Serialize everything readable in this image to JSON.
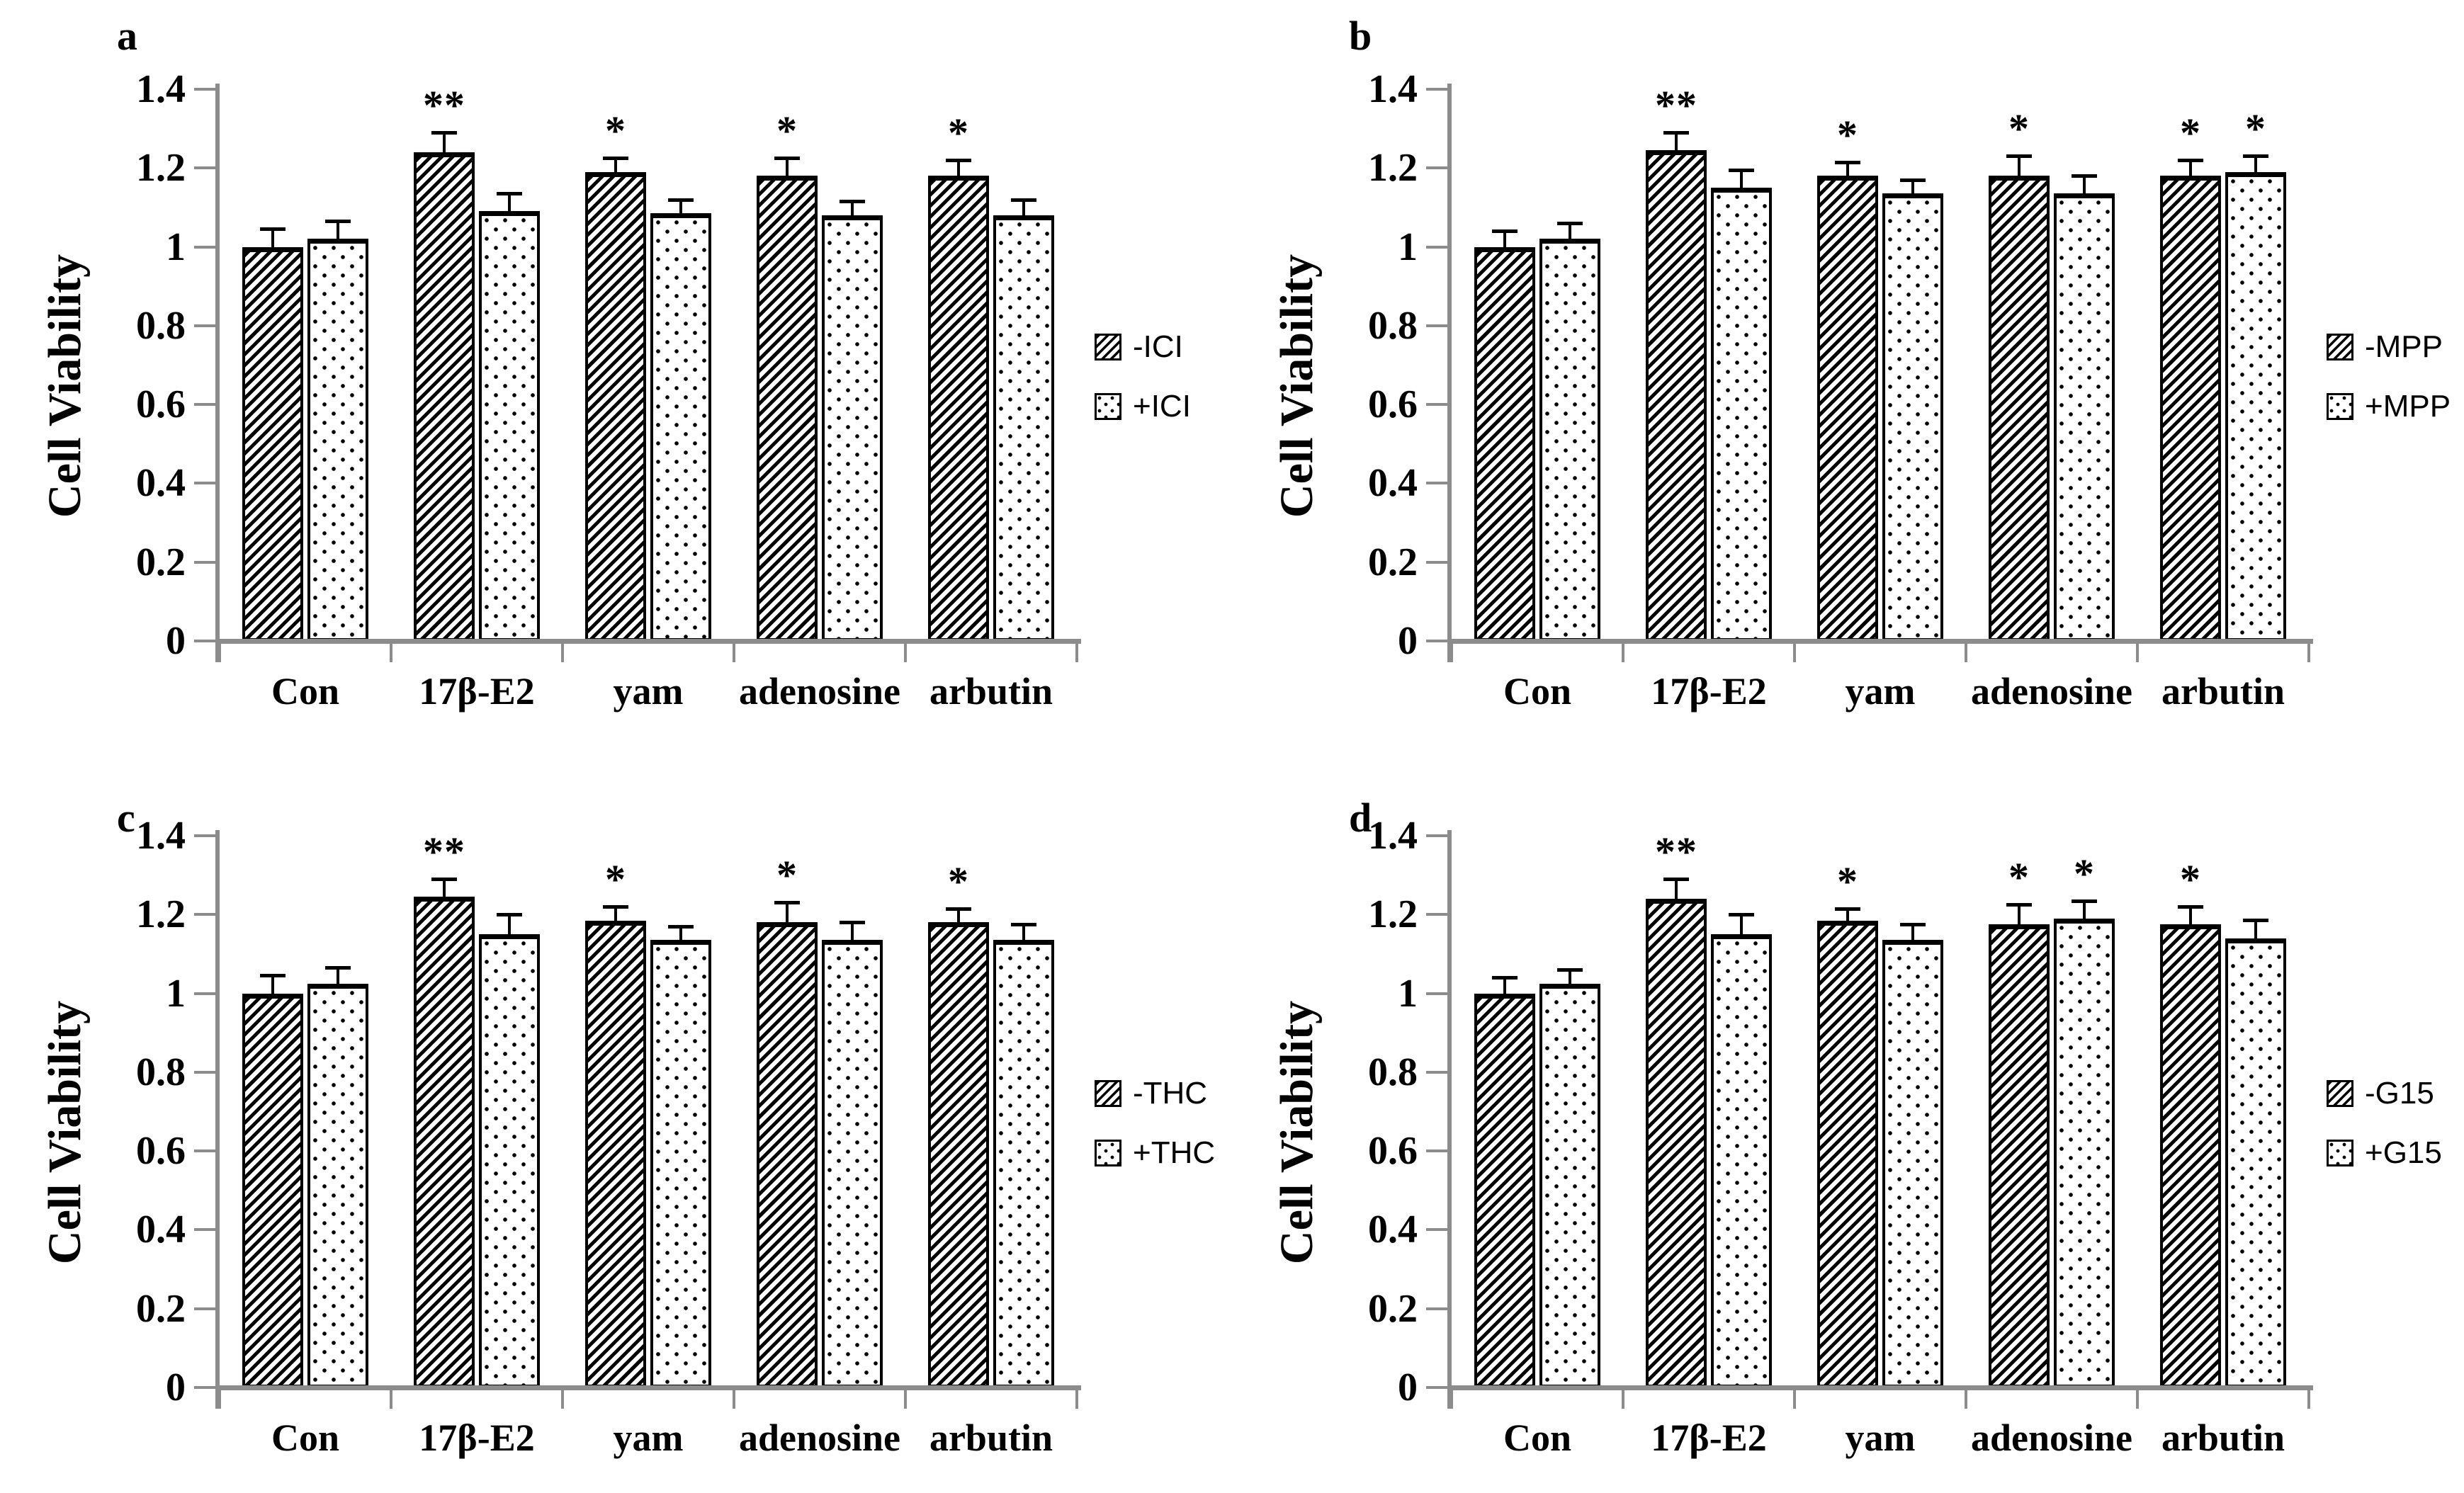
{
  "figure": {
    "background": "#ffffff",
    "axis_color": "#8c8c8c",
    "bar_outline_color": "#000000",
    "text_color": "#000000",
    "y_axis_title": "Cell Viability",
    "panel_letters": [
      "a",
      "b",
      "c",
      "d"
    ]
  },
  "chart_data": [
    {
      "type": "bar",
      "panel_label": "a",
      "title": "",
      "xlabel": "",
      "ylabel": "Cell Viability",
      "ylim": [
        0,
        1.4
      ],
      "yticks": [
        0,
        0.2,
        0.4,
        0.6,
        0.8,
        1,
        1.2,
        1.4
      ],
      "ytick_labels": [
        "0",
        "0.2",
        "0.4",
        "0.6",
        "0.8",
        "1",
        "1.2",
        "1.4"
      ],
      "categories": [
        "Con",
        "17β-E2",
        "yam",
        "adenosine",
        "arbutin"
      ],
      "grid": false,
      "legend_position": "right-middle",
      "series": [
        {
          "name": "-ICI",
          "pattern": "hatched",
          "values": [
            1.0,
            1.24,
            1.19,
            1.18,
            1.18
          ],
          "errors": [
            0.04,
            0.045,
            0.03,
            0.04,
            0.035
          ],
          "sig": [
            "",
            "**",
            "*",
            "*",
            "*"
          ]
        },
        {
          "name": "+ICI",
          "pattern": "dotted",
          "values": [
            1.02,
            1.09,
            1.085,
            1.08,
            1.08
          ],
          "errors": [
            0.04,
            0.04,
            0.03,
            0.03,
            0.035
          ],
          "sig": [
            "",
            "",
            "",
            "",
            ""
          ]
        }
      ]
    },
    {
      "type": "bar",
      "panel_label": "b",
      "title": "",
      "xlabel": "",
      "ylabel": "Cell Viability",
      "ylim": [
        0,
        1.4
      ],
      "yticks": [
        0,
        0.2,
        0.4,
        0.6,
        0.8,
        1,
        1.2,
        1.4
      ],
      "ytick_labels": [
        "0",
        "0.2",
        "0.4",
        "0.6",
        "0.8",
        "1",
        "1.2",
        "1.4"
      ],
      "categories": [
        "Con",
        "17β-E2",
        "yam",
        "adenosine",
        "arbutin"
      ],
      "grid": false,
      "legend_position": "right-middle",
      "series": [
        {
          "name": "-MPP",
          "pattern": "hatched",
          "values": [
            1.0,
            1.245,
            1.18,
            1.18,
            1.18
          ],
          "errors": [
            0.035,
            0.04,
            0.03,
            0.045,
            0.035
          ],
          "sig": [
            "",
            "**",
            "*",
            "*",
            "*"
          ]
        },
        {
          "name": "+MPP",
          "pattern": "dotted",
          "values": [
            1.02,
            1.15,
            1.135,
            1.135,
            1.19
          ],
          "errors": [
            0.035,
            0.04,
            0.03,
            0.04,
            0.035
          ],
          "sig": [
            "",
            "",
            "",
            "",
            "*"
          ]
        }
      ]
    },
    {
      "type": "bar",
      "panel_label": "c",
      "title": "",
      "xlabel": "",
      "ylabel": "Cell Viability",
      "ylim": [
        0,
        1.4
      ],
      "yticks": [
        0,
        0.2,
        0.4,
        0.6,
        0.8,
        1,
        1.2,
        1.4
      ],
      "ytick_labels": [
        "0",
        "0.2",
        "0.4",
        "0.6",
        "0.8",
        "1",
        "1.2",
        "1.4"
      ],
      "categories": [
        "Con",
        "17β-E2",
        "yam",
        "adenosine",
        "arbutin"
      ],
      "grid": false,
      "legend_position": "right-middle",
      "series": [
        {
          "name": "-THC",
          "pattern": "hatched",
          "values": [
            1.0,
            1.245,
            1.185,
            1.18,
            1.18
          ],
          "errors": [
            0.04,
            0.04,
            0.03,
            0.045,
            0.03
          ],
          "sig": [
            "",
            "**",
            "*",
            "*",
            "*"
          ]
        },
        {
          "name": "+THC",
          "pattern": "dotted",
          "values": [
            1.025,
            1.15,
            1.135,
            1.135,
            1.135
          ],
          "errors": [
            0.035,
            0.045,
            0.03,
            0.04,
            0.035
          ],
          "sig": [
            "",
            "",
            "",
            "",
            ""
          ]
        }
      ]
    },
    {
      "type": "bar",
      "panel_label": "d",
      "title": "",
      "xlabel": "",
      "ylabel": "Cell Viability",
      "ylim": [
        0,
        1.4
      ],
      "yticks": [
        0,
        0.2,
        0.4,
        0.6,
        0.8,
        1,
        1.2,
        1.4
      ],
      "ytick_labels": [
        "0",
        "0.2",
        "0.4",
        "0.6",
        "0.8",
        "1",
        "1.2",
        "1.4"
      ],
      "categories": [
        "Con",
        "17β-E2",
        "yam",
        "adenosine",
        "arbutin"
      ],
      "grid": false,
      "legend_position": "right-middle",
      "series": [
        {
          "name": "-G15",
          "pattern": "hatched",
          "values": [
            1.0,
            1.24,
            1.185,
            1.175,
            1.175
          ],
          "errors": [
            0.035,
            0.045,
            0.025,
            0.045,
            0.04
          ],
          "sig": [
            "",
            "**",
            "*",
            "*",
            "*"
          ]
        },
        {
          "name": "+G15",
          "pattern": "dotted",
          "values": [
            1.025,
            1.15,
            1.135,
            1.19,
            1.14
          ],
          "errors": [
            0.03,
            0.045,
            0.035,
            0.04,
            0.04
          ],
          "sig": [
            "",
            "",
            "",
            "*",
            ""
          ]
        }
      ]
    }
  ]
}
